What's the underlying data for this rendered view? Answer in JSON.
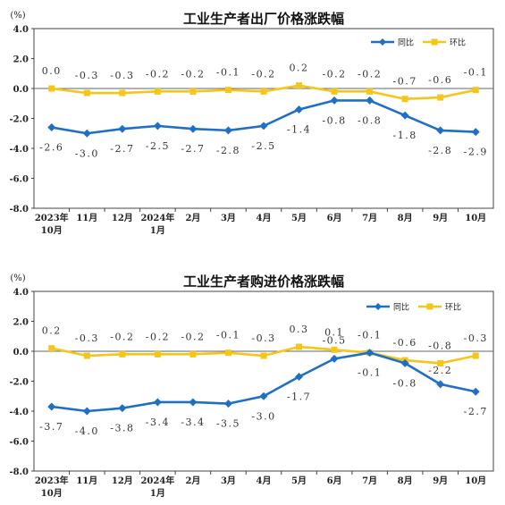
{
  "chart_data": [
    {
      "type": "line",
      "title": "工业生产者出厂价格涨跌幅",
      "ylabel": "(%)",
      "categories": [
        [
          "2023年",
          "10月"
        ],
        [
          "11月"
        ],
        [
          "12月"
        ],
        [
          "2024年",
          "1月"
        ],
        [
          "2月"
        ],
        [
          "3月"
        ],
        [
          "4月"
        ],
        [
          "5月"
        ],
        [
          "6月"
        ],
        [
          "7月"
        ],
        [
          "8月"
        ],
        [
          "9月"
        ],
        [
          "10月"
        ]
      ],
      "yticks": [
        "4.0",
        "2.0",
        "0.0",
        "-2.0",
        "-4.0",
        "-6.0",
        "-8.0"
      ],
      "ylim": [
        -8,
        4
      ],
      "grid": false,
      "legend": "top-right",
      "series": [
        {
          "name": "同比",
          "color": "#1f6fc5",
          "marker": "diamond",
          "values": [
            -2.6,
            -3.0,
            -2.7,
            -2.5,
            -2.7,
            -2.8,
            -2.5,
            -1.4,
            -0.8,
            -0.8,
            -1.8,
            -2.8,
            -2.9
          ],
          "labels": [
            "-2.6",
            "-3.0",
            "-2.7",
            "-2.5",
            "-2.7",
            "-2.8",
            "-2.5",
            "-1.4",
            "-0.8",
            "-0.8",
            "-1.8",
            "-2.8",
            "-2.9"
          ]
        },
        {
          "name": "环比",
          "color": "#f5c518",
          "marker": "square",
          "values": [
            0.0,
            -0.3,
            -0.3,
            -0.2,
            -0.2,
            -0.1,
            -0.2,
            0.2,
            -0.2,
            -0.2,
            -0.7,
            -0.6,
            -0.1
          ],
          "labels": [
            "0.0",
            "-0.3",
            "-0.3",
            "-0.2",
            "-0.2",
            "-0.1",
            "-0.2",
            "0.2",
            "-0.2",
            "-0.2",
            "-0.7",
            "-0.6",
            "-0.1"
          ]
        }
      ]
    },
    {
      "type": "line",
      "title": "工业生产者购进价格涨跌幅",
      "ylabel": "(%)",
      "categories": [
        [
          "2023年",
          "10月"
        ],
        [
          "11月"
        ],
        [
          "12月"
        ],
        [
          "2024年",
          "1月"
        ],
        [
          "2月"
        ],
        [
          "3月"
        ],
        [
          "4月"
        ],
        [
          "5月"
        ],
        [
          "6月"
        ],
        [
          "7月"
        ],
        [
          "8月"
        ],
        [
          "9月"
        ],
        [
          "10月"
        ]
      ],
      "yticks": [
        "4.0",
        "2.0",
        "0.0",
        "-2.0",
        "-4.0",
        "-6.0",
        "-8.0"
      ],
      "ylim": [
        -8,
        4
      ],
      "grid": false,
      "legend": "top-right",
      "series": [
        {
          "name": "同比",
          "color": "#1f6fc5",
          "marker": "diamond",
          "values": [
            -3.7,
            -4.0,
            -3.8,
            -3.4,
            -3.4,
            -3.5,
            -3.0,
            -1.7,
            -0.5,
            -0.1,
            -0.8,
            -2.2,
            -2.7
          ],
          "labels": [
            "-3.7",
            "-4.0",
            "-3.8",
            "-3.4",
            "-3.4",
            "-3.5",
            "-3.0",
            "-1.7",
            "-0.5",
            "-0.1",
            "-0.8",
            "-2.2",
            "-2.7"
          ]
        },
        {
          "name": "环比",
          "color": "#f5c518",
          "marker": "square",
          "values": [
            0.2,
            -0.3,
            -0.2,
            -0.2,
            -0.2,
            -0.1,
            -0.3,
            0.3,
            0.1,
            -0.1,
            -0.6,
            -0.8,
            -0.3
          ],
          "labels": [
            "0.2",
            "-0.3",
            "-0.2",
            "-0.2",
            "-0.2",
            "-0.1",
            "-0.3",
            "0.3",
            "0.1",
            "-0.1",
            "-0.6",
            "-0.8",
            "-0.3"
          ]
        }
      ]
    }
  ]
}
